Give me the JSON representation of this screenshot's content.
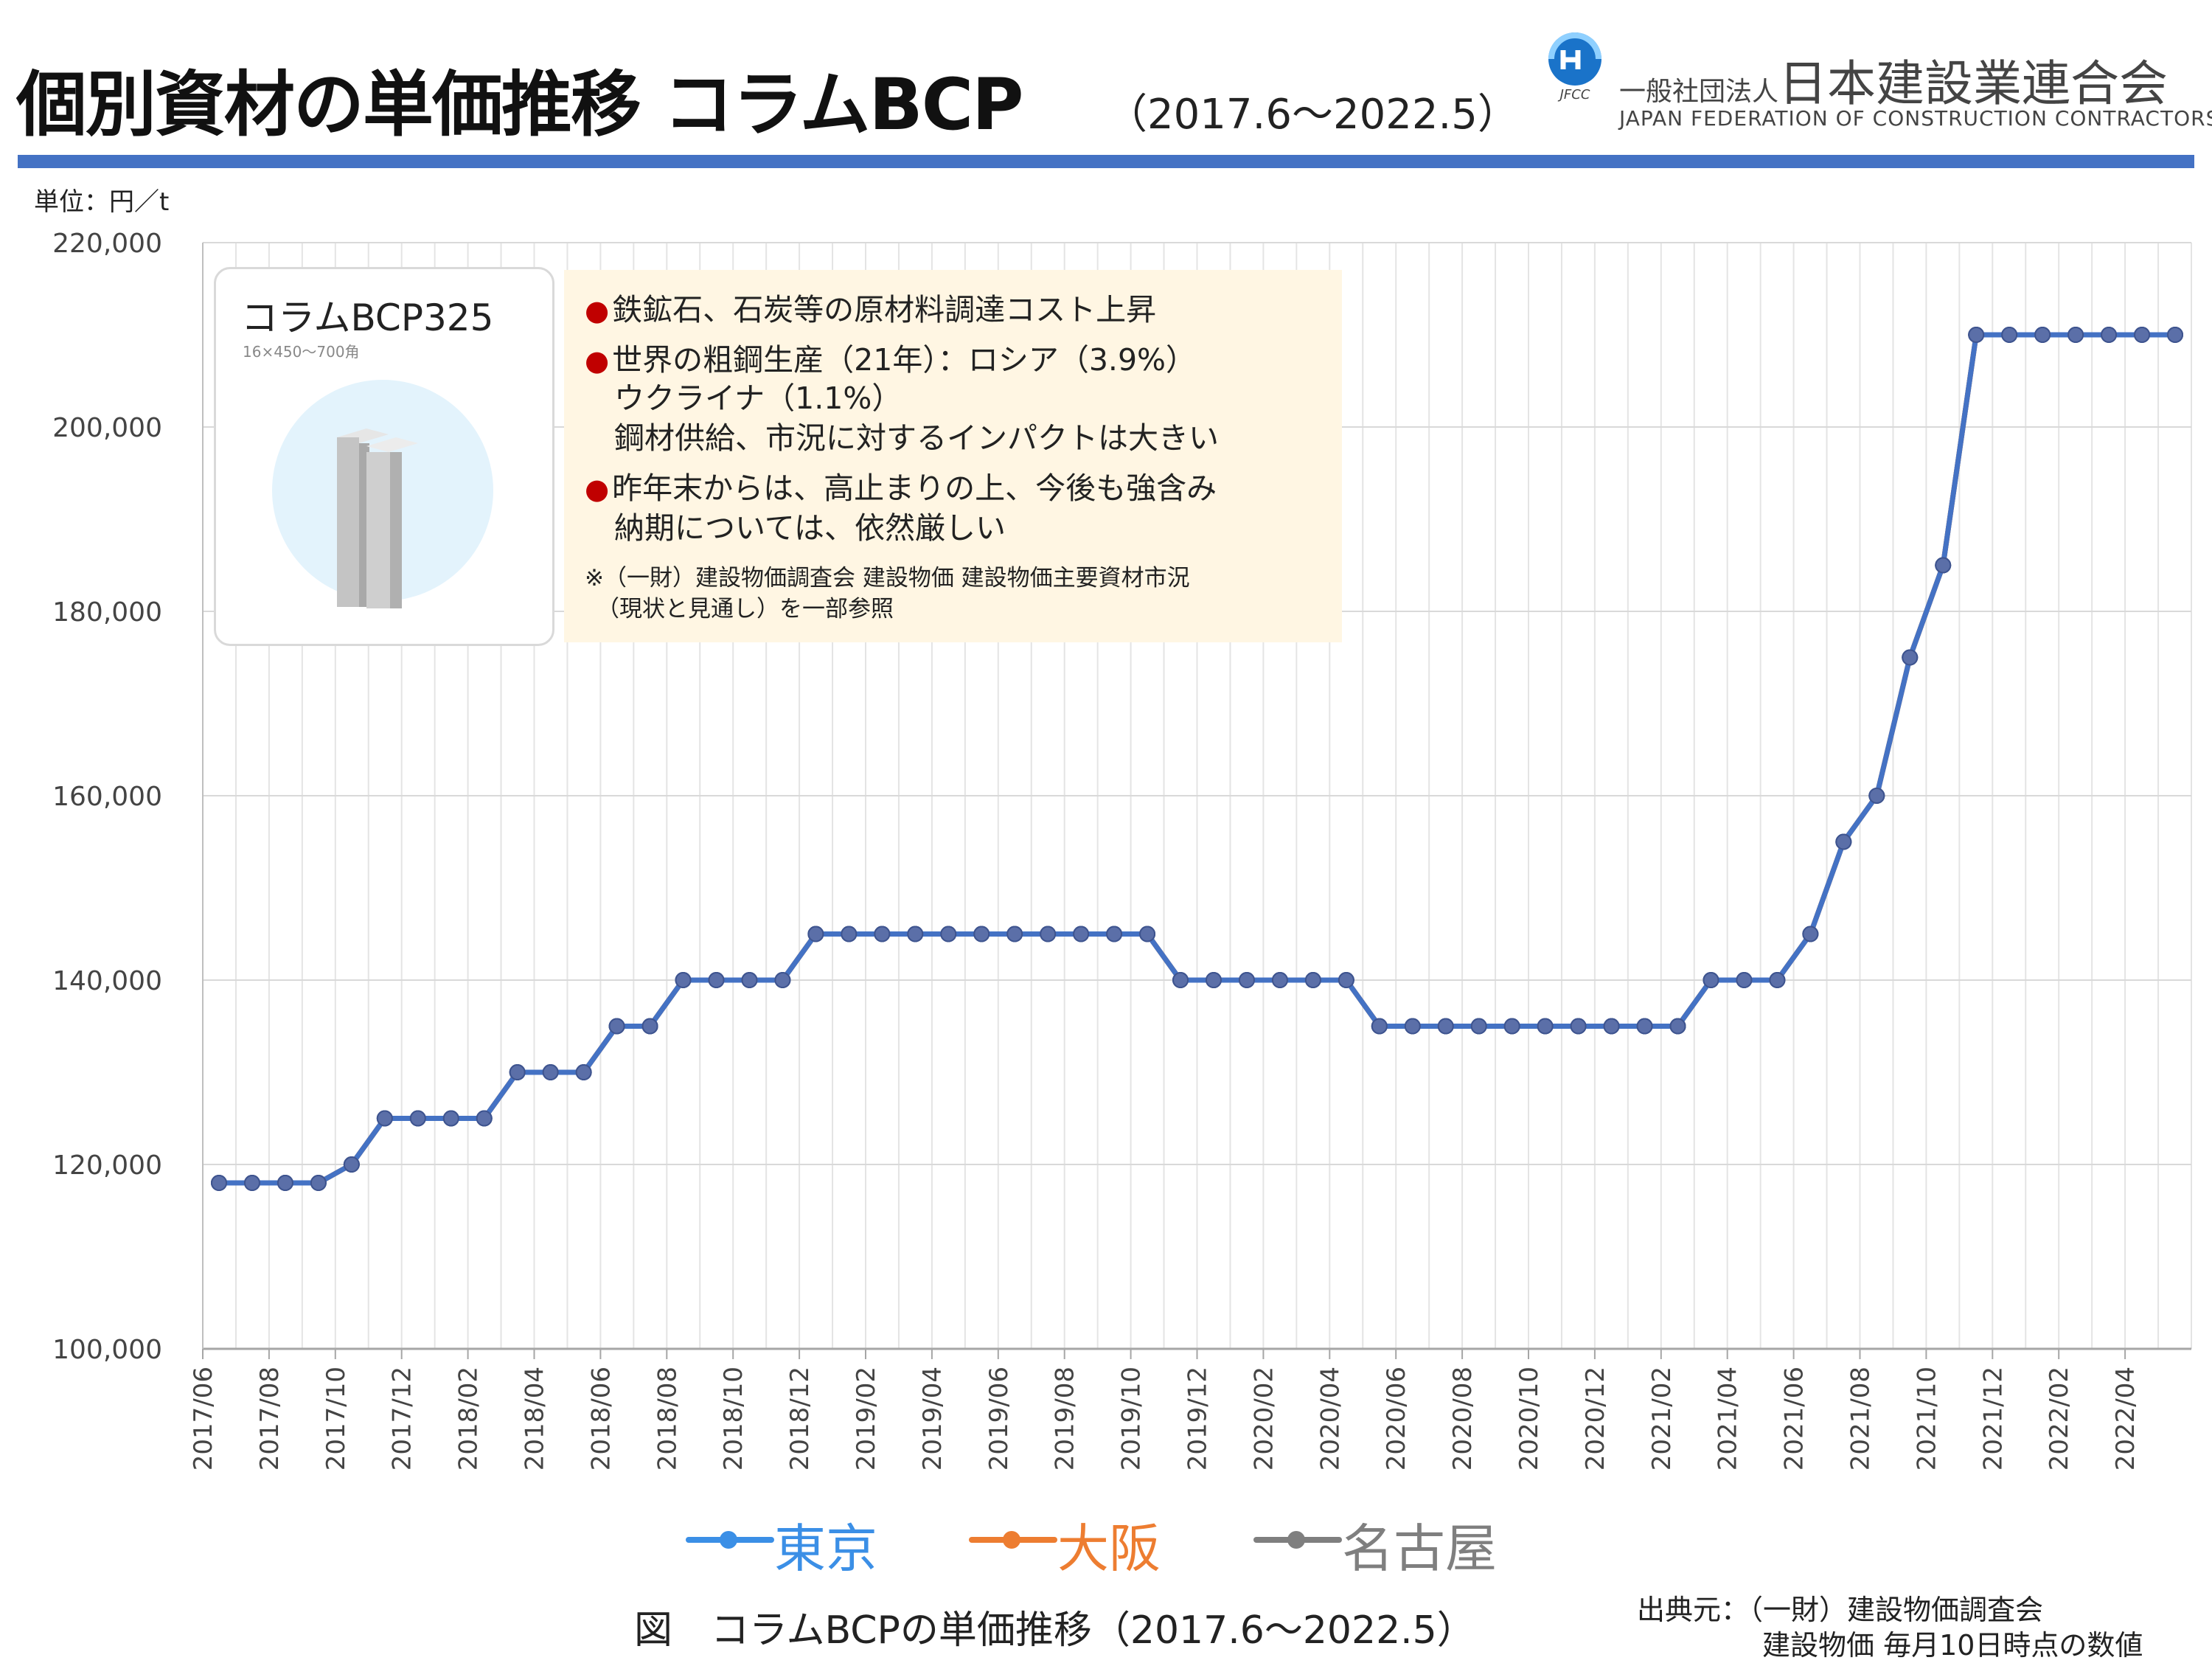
{
  "header": {
    "title": "個別資材の単価推移 コラムBCP",
    "period": "（2017.6～2022.5）",
    "org_name_prefix": "一般社団法人",
    "org_name": "日本建設業連合会",
    "org_name_en": "JAPAN FEDERATION OF CONSTRUCTION CONTRACTORS",
    "org_logo_text": "JFCC",
    "accent_color": "#4472c4"
  },
  "unit_label": "単位：円／t",
  "product": {
    "name": "コラムBCP325",
    "spec": "16×450～700角"
  },
  "notes": {
    "bullets": [
      "鉄鉱石、石炭等の原材料調達コスト上昇",
      "世界の粗鋼生産（21年）：ロシア（3.9%）",
      "ウクライナ（1.1%）",
      "鋼材供給、市況に対するインパクトは大きい",
      "昨年末からは、高止まりの上、今後も強含み",
      "納期については、依然厳しい"
    ],
    "reference_1": "※（一財）建設物価調査会 建設物価 建設物価主要資材市況",
    "reference_2": "（現状と見通し）を一部参照",
    "bullet_color": "#c00000"
  },
  "caption": "図　コラムBCPの単価推移（2017.6～2022.5）",
  "source": {
    "line1": "出典元：（一財）建設物価調査会",
    "line2": "建設物価 毎月10日時点の数値"
  },
  "chart_data": {
    "type": "line",
    "title": "",
    "xlabel": "",
    "ylabel": "",
    "ylim": [
      100000,
      220000
    ],
    "yticks": [
      100000,
      120000,
      140000,
      160000,
      180000,
      200000,
      220000
    ],
    "ytick_labels": [
      "100,000",
      "120,000",
      "140,000",
      "160,000",
      "180,000",
      "200,000",
      "220,000"
    ],
    "grid": true,
    "legend_position": "bottom",
    "x": [
      "2017/06",
      "2017/07",
      "2017/08",
      "2017/09",
      "2017/10",
      "2017/11",
      "2017/12",
      "2018/01",
      "2018/02",
      "2018/03",
      "2018/04",
      "2018/05",
      "2018/06",
      "2018/07",
      "2018/08",
      "2018/09",
      "2018/10",
      "2018/11",
      "2018/12",
      "2019/01",
      "2019/02",
      "2019/03",
      "2019/04",
      "2019/05",
      "2019/06",
      "2019/07",
      "2019/08",
      "2019/09",
      "2019/10",
      "2019/11",
      "2019/12",
      "2020/01",
      "2020/02",
      "2020/03",
      "2020/04",
      "2020/05",
      "2020/06",
      "2020/07",
      "2020/08",
      "2020/09",
      "2020/10",
      "2020/11",
      "2020/12",
      "2021/01",
      "2021/02",
      "2021/03",
      "2021/04",
      "2021/05",
      "2021/06",
      "2021/07",
      "2021/08",
      "2021/09",
      "2021/10",
      "2021/11",
      "2021/12",
      "2022/01",
      "2022/02",
      "2022/03",
      "2022/04",
      "2022/05"
    ],
    "xtick_labels": [
      "2017/06",
      "2017/08",
      "2017/10",
      "2017/12",
      "2018/02",
      "2018/04",
      "2018/06",
      "2018/08",
      "2018/10",
      "2018/12",
      "2019/02",
      "2019/04",
      "2019/06",
      "2019/08",
      "2019/10",
      "2019/12",
      "2020/02",
      "2020/04",
      "2020/06",
      "2020/08",
      "2020/10",
      "2020/12",
      "2021/02",
      "2021/04",
      "2021/06",
      "2021/08",
      "2021/10",
      "2021/12",
      "2022/02",
      "2022/04"
    ],
    "series": [
      {
        "name": "東京",
        "color": "#4472c4",
        "legend_color": "#3b8fe6",
        "values": [
          118000,
          118000,
          118000,
          118000,
          120000,
          125000,
          125000,
          125000,
          125000,
          130000,
          130000,
          130000,
          135000,
          135000,
          140000,
          140000,
          140000,
          140000,
          145000,
          145000,
          145000,
          145000,
          145000,
          145000,
          145000,
          145000,
          145000,
          145000,
          145000,
          140000,
          140000,
          140000,
          140000,
          140000,
          140000,
          135000,
          135000,
          135000,
          135000,
          135000,
          135000,
          135000,
          135000,
          135000,
          135000,
          140000,
          140000,
          140000,
          145000,
          155000,
          160000,
          175000,
          185000,
          210000,
          210000,
          210000,
          210000,
          210000,
          210000,
          210000
        ]
      },
      {
        "name": "大阪",
        "color": "#ed7d31",
        "legend_color": "#ed7d31",
        "values": [
          118000,
          118000,
          118000,
          118000,
          120000,
          125000,
          125000,
          125000,
          125000,
          130000,
          130000,
          130000,
          135000,
          135000,
          140000,
          140000,
          140000,
          140000,
          145000,
          145000,
          145000,
          145000,
          145000,
          145000,
          145000,
          145000,
          145000,
          145000,
          145000,
          140000,
          140000,
          140000,
          140000,
          140000,
          140000,
          135000,
          135000,
          135000,
          135000,
          135000,
          135000,
          135000,
          135000,
          135000,
          135000,
          140000,
          140000,
          140000,
          145000,
          155000,
          160000,
          175000,
          185000,
          210000,
          210000,
          210000,
          210000,
          210000,
          210000,
          210000
        ]
      },
      {
        "name": "名古屋",
        "color": "#7f7f7f",
        "legend_color": "#7f7f7f",
        "values": [
          118000,
          118000,
          118000,
          118000,
          120000,
          125000,
          125000,
          125000,
          125000,
          130000,
          130000,
          130000,
          135000,
          135000,
          140000,
          140000,
          140000,
          140000,
          145000,
          145000,
          145000,
          145000,
          145000,
          145000,
          145000,
          145000,
          145000,
          145000,
          145000,
          140000,
          140000,
          140000,
          140000,
          140000,
          140000,
          135000,
          135000,
          135000,
          135000,
          135000,
          135000,
          135000,
          135000,
          135000,
          135000,
          140000,
          140000,
          140000,
          145000,
          155000,
          160000,
          175000,
          185000,
          210000,
          210000,
          210000,
          210000,
          210000,
          210000,
          210000
        ]
      }
    ]
  }
}
